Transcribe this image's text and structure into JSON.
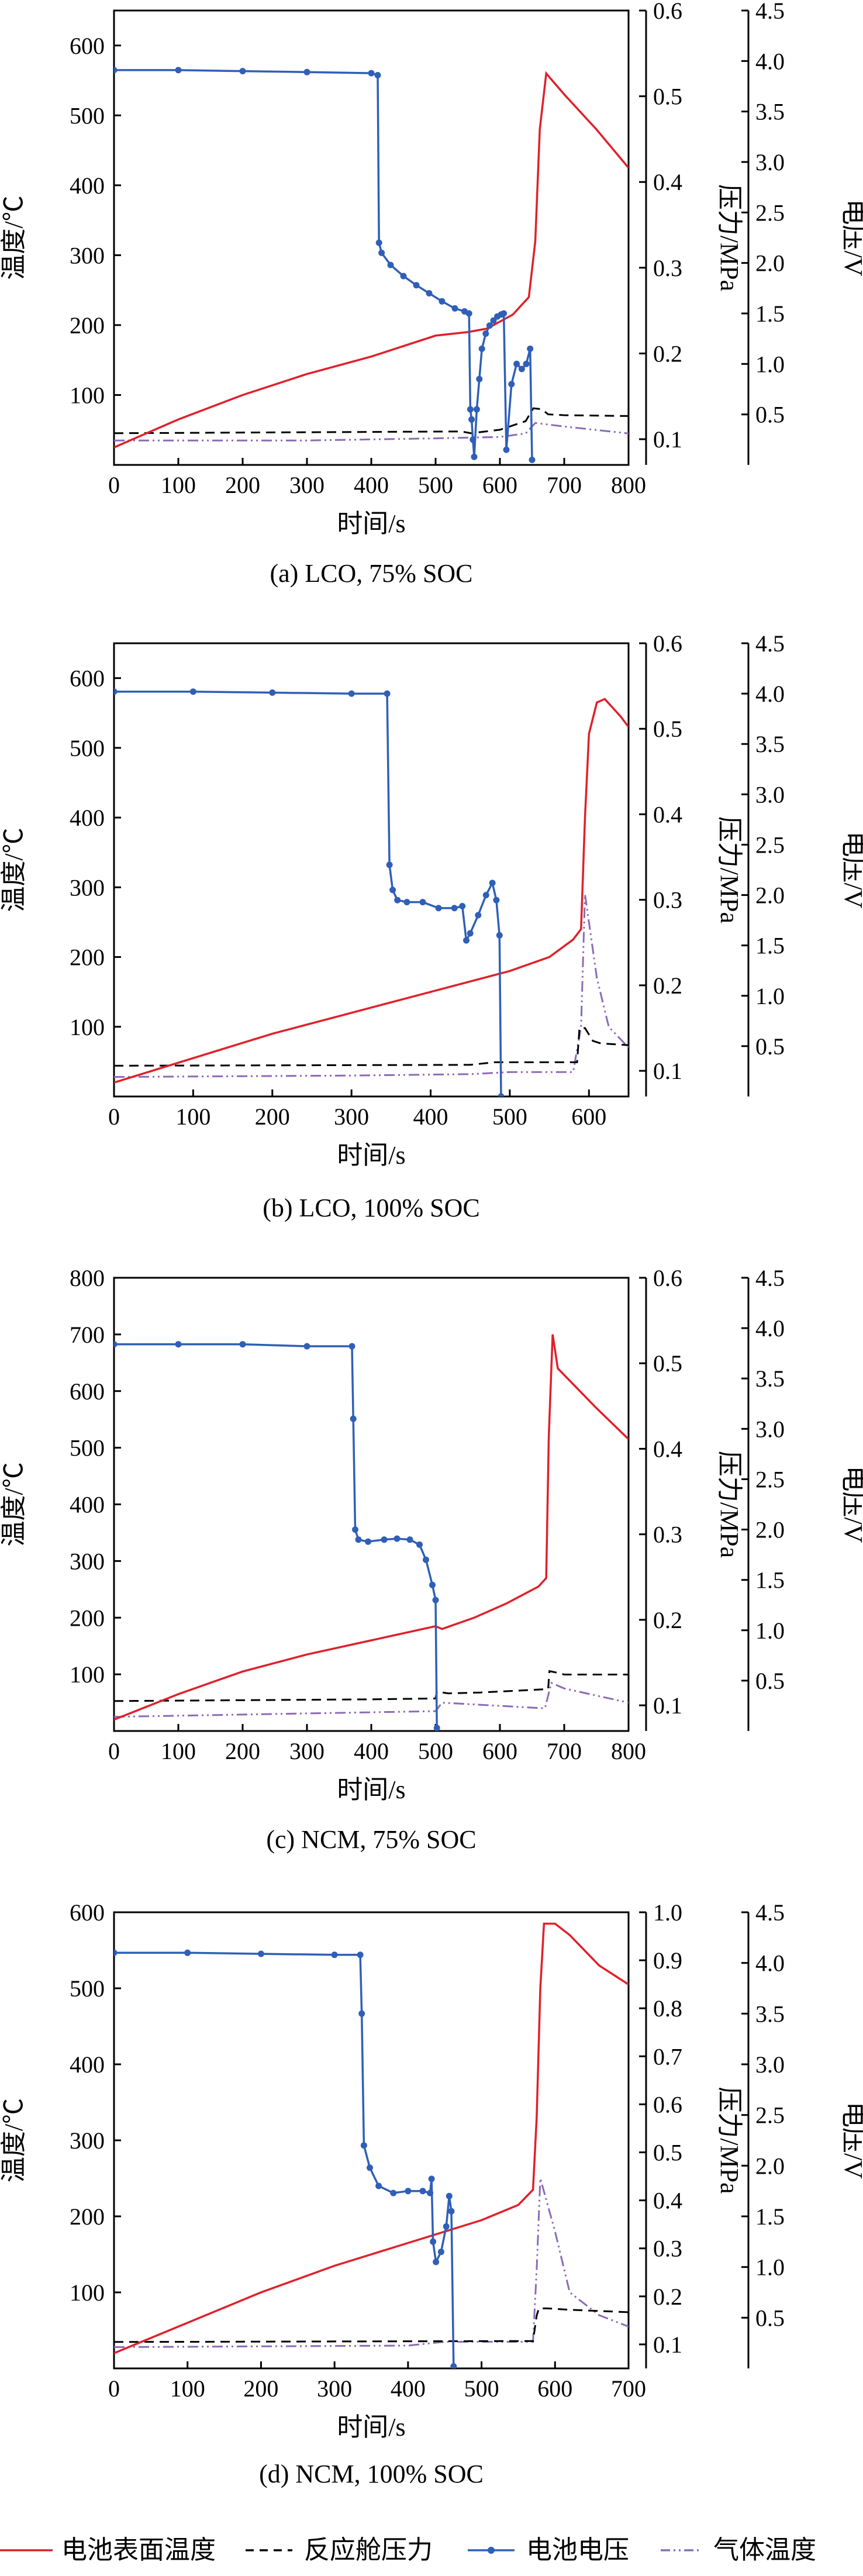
{
  "legend": [
    {
      "label": "电池表面温度",
      "color": "#e0202a",
      "style": "solid"
    },
    {
      "label": "反应舱压力",
      "color": "#000000",
      "style": "dashed"
    },
    {
      "label": "电池电压",
      "color": "#2f5fb8",
      "style": "marker"
    },
    {
      "label": "气体温度",
      "color": "#8b6bb8",
      "style": "dashdotdot"
    }
  ],
  "chart_data": [
    {
      "type": "line",
      "caption": "(a) LCO, 75% SOC",
      "xlabel": "时间/s",
      "y1label": "温度/℃",
      "y2label": "压力/MPa",
      "y3label": "电压/V",
      "xlim": [
        0,
        800
      ],
      "xticks": [
        0,
        100,
        200,
        300,
        400,
        500,
        600,
        700,
        800
      ],
      "y1lim": [
        0,
        650
      ],
      "y1ticks": [
        100,
        200,
        300,
        400,
        500,
        600
      ],
      "y2lim": [
        0.07,
        0.6
      ],
      "y2ticks": [
        0.1,
        0.2,
        0.3,
        0.4,
        0.5,
        0.6
      ],
      "y2dec": 1,
      "y3lim": [
        0.0,
        4.5
      ],
      "y3ticks": [
        0.5,
        1.0,
        1.5,
        2.0,
        2.5,
        3.0,
        3.5,
        4.0,
        4.5
      ],
      "series": {
        "surface_temp": [
          [
            0,
            25
          ],
          [
            100,
            65
          ],
          [
            200,
            100
          ],
          [
            300,
            130
          ],
          [
            400,
            155
          ],
          [
            500,
            185
          ],
          [
            550,
            190
          ],
          [
            580,
            195
          ],
          [
            620,
            215
          ],
          [
            645,
            240
          ],
          [
            655,
            320
          ],
          [
            662,
            480
          ],
          [
            672,
            560
          ],
          [
            700,
            530
          ],
          [
            750,
            480
          ],
          [
            800,
            425
          ]
        ],
        "pressure": [
          [
            0,
            0.107
          ],
          [
            540,
            0.109
          ],
          [
            555,
            0.107
          ],
          [
            600,
            0.111
          ],
          [
            640,
            0.121
          ],
          [
            652,
            0.136
          ],
          [
            665,
            0.135
          ],
          [
            675,
            0.129
          ],
          [
            700,
            0.128
          ],
          [
            800,
            0.127
          ]
        ],
        "gas_temp": [
          [
            0,
            35
          ],
          [
            300,
            35
          ],
          [
            500,
            38
          ],
          [
            600,
            40
          ],
          [
            640,
            45
          ],
          [
            655,
            60
          ],
          [
            700,
            55
          ],
          [
            800,
            45
          ]
        ],
        "voltage": [
          [
            0,
            3.91
          ],
          [
            100,
            3.91
          ],
          [
            200,
            3.9
          ],
          [
            300,
            3.89
          ],
          [
            400,
            3.88
          ],
          [
            410,
            3.86
          ],
          [
            412,
            2.2
          ],
          [
            416,
            2.1
          ],
          [
            430,
            1.98
          ],
          [
            450,
            1.87
          ],
          [
            470,
            1.78
          ],
          [
            490,
            1.7
          ],
          [
            510,
            1.62
          ],
          [
            530,
            1.55
          ],
          [
            545,
            1.52
          ],
          [
            552,
            1.5
          ],
          [
            554,
            0.55
          ],
          [
            556,
            0.45
          ],
          [
            558,
            0.25
          ],
          [
            560,
            0.08
          ],
          [
            564,
            0.55
          ],
          [
            568,
            0.85
          ],
          [
            572,
            1.15
          ],
          [
            578,
            1.3
          ],
          [
            584,
            1.38
          ],
          [
            590,
            1.43
          ],
          [
            596,
            1.47
          ],
          [
            602,
            1.49
          ],
          [
            606,
            1.5
          ],
          [
            610,
            0.15
          ],
          [
            618,
            0.8
          ],
          [
            626,
            1.0
          ],
          [
            634,
            0.95
          ],
          [
            641,
            1.0
          ],
          [
            647,
            1.15
          ],
          [
            650,
            0.05
          ]
        ]
      }
    },
    {
      "type": "line",
      "caption": "(b) LCO, 100% SOC",
      "xlabel": "时间/s",
      "y1label": "温度/℃",
      "y2label": "压力/MPa",
      "y3label": "电压/V",
      "xlim": [
        0,
        650
      ],
      "xticks": [
        0,
        100,
        200,
        300,
        400,
        500,
        600
      ],
      "y1lim": [
        0,
        650
      ],
      "y1ticks": [
        100,
        200,
        300,
        400,
        500,
        600
      ],
      "y2lim": [
        0.07,
        0.6
      ],
      "y2ticks": [
        0.1,
        0.2,
        0.3,
        0.4,
        0.5,
        0.6
      ],
      "y2dec": 1,
      "y3lim": [
        0.0,
        4.5
      ],
      "y3ticks": [
        0.5,
        1.0,
        1.5,
        2.0,
        2.5,
        3.0,
        3.5,
        4.0,
        4.5
      ],
      "series": {
        "surface_temp": [
          [
            0,
            20
          ],
          [
            100,
            55
          ],
          [
            200,
            90
          ],
          [
            300,
            120
          ],
          [
            400,
            150
          ],
          [
            450,
            165
          ],
          [
            500,
            180
          ],
          [
            550,
            200
          ],
          [
            580,
            225
          ],
          [
            590,
            240
          ],
          [
            595,
            400
          ],
          [
            600,
            520
          ],
          [
            610,
            565
          ],
          [
            620,
            570
          ],
          [
            640,
            545
          ],
          [
            650,
            530
          ]
        ],
        "pressure": [
          [
            0,
            0.106
          ],
          [
            450,
            0.107
          ],
          [
            480,
            0.11
          ],
          [
            585,
            0.11
          ],
          [
            588,
            0.15
          ],
          [
            595,
            0.15
          ],
          [
            605,
            0.135
          ],
          [
            615,
            0.132
          ],
          [
            650,
            0.13
          ]
        ],
        "gas_temp": [
          [
            0,
            28
          ],
          [
            300,
            30
          ],
          [
            450,
            32
          ],
          [
            500,
            35
          ],
          [
            580,
            35
          ],
          [
            590,
            100
          ],
          [
            595,
            290
          ],
          [
            610,
            170
          ],
          [
            625,
            100
          ],
          [
            650,
            70
          ]
        ],
        "voltage": [
          [
            0,
            4.02
          ],
          [
            100,
            4.02
          ],
          [
            200,
            4.01
          ],
          [
            300,
            4.0
          ],
          [
            345,
            4.0
          ],
          [
            348,
            2.3
          ],
          [
            352,
            2.05
          ],
          [
            358,
            1.95
          ],
          [
            370,
            1.93
          ],
          [
            390,
            1.93
          ],
          [
            410,
            1.87
          ],
          [
            430,
            1.87
          ],
          [
            440,
            1.89
          ],
          [
            445,
            1.55
          ],
          [
            450,
            1.62
          ],
          [
            460,
            1.8
          ],
          [
            470,
            2.0
          ],
          [
            478,
            2.12
          ],
          [
            483,
            1.95
          ],
          [
            487,
            1.6
          ],
          [
            489,
            0.0
          ]
        ]
      }
    },
    {
      "type": "line",
      "caption": "(c) NCM, 75% SOC",
      "xlabel": "时间/s",
      "y1label": "温度/℃",
      "y2label": "压力/MPa",
      "y3label": "电压/V",
      "xlim": [
        0,
        800
      ],
      "xticks": [
        0,
        100,
        200,
        300,
        400,
        500,
        600,
        700,
        800
      ],
      "y1lim": [
        0,
        800
      ],
      "y1ticks": [
        100,
        200,
        300,
        400,
        500,
        600,
        700,
        800
      ],
      "y2lim": [
        0.07,
        0.6
      ],
      "y2ticks": [
        0.1,
        0.2,
        0.3,
        0.4,
        0.5,
        0.6
      ],
      "y2dec": 1,
      "y3lim": [
        0.0,
        4.5
      ],
      "y3ticks": [
        0.5,
        1.0,
        1.5,
        2.0,
        2.5,
        3.0,
        3.5,
        4.0,
        4.5
      ],
      "series": {
        "surface_temp": [
          [
            0,
            20
          ],
          [
            100,
            65
          ],
          [
            200,
            105
          ],
          [
            300,
            135
          ],
          [
            400,
            160
          ],
          [
            500,
            185
          ],
          [
            510,
            180
          ],
          [
            560,
            200
          ],
          [
            610,
            225
          ],
          [
            660,
            255
          ],
          [
            672,
            270
          ],
          [
            676,
            520
          ],
          [
            682,
            700
          ],
          [
            690,
            640
          ],
          [
            750,
            570
          ],
          [
            800,
            515
          ]
        ],
        "pressure": [
          [
            0,
            0.105
          ],
          [
            400,
            0.107
          ],
          [
            500,
            0.108
          ],
          [
            502,
            0.116
          ],
          [
            520,
            0.114
          ],
          [
            570,
            0.115
          ],
          [
            650,
            0.118
          ],
          [
            675,
            0.119
          ],
          [
            677,
            0.14
          ],
          [
            690,
            0.138
          ],
          [
            700,
            0.136
          ],
          [
            800,
            0.136
          ]
        ],
        "gas_temp": [
          [
            0,
            25
          ],
          [
            500,
            35
          ],
          [
            510,
            50
          ],
          [
            670,
            40
          ],
          [
            680,
            85
          ],
          [
            700,
            75
          ],
          [
            800,
            50
          ]
        ],
        "voltage": [
          [
            0,
            3.84
          ],
          [
            100,
            3.84
          ],
          [
            200,
            3.84
          ],
          [
            300,
            3.82
          ],
          [
            370,
            3.82
          ],
          [
            372,
            3.1
          ],
          [
            375,
            2.0
          ],
          [
            380,
            1.9
          ],
          [
            395,
            1.88
          ],
          [
            420,
            1.9
          ],
          [
            440,
            1.91
          ],
          [
            460,
            1.9
          ],
          [
            475,
            1.85
          ],
          [
            485,
            1.7
          ],
          [
            495,
            1.45
          ],
          [
            500,
            1.3
          ],
          [
            502,
            0.03
          ]
        ]
      }
    },
    {
      "type": "line",
      "caption": "(d) NCM, 100% SOC",
      "xlabel": "时间/s",
      "y1label": "温度/℃",
      "y2label": "压力/MPa",
      "y3label": "电压/V",
      "xlim": [
        0,
        700
      ],
      "xticks": [
        0,
        100,
        200,
        300,
        400,
        500,
        600,
        700
      ],
      "y1lim": [
        0,
        600
      ],
      "y1ticks": [
        100,
        200,
        300,
        400,
        500,
        600
      ],
      "y2lim": [
        0.05,
        1.0
      ],
      "y2ticks": [
        0.1,
        0.2,
        0.3,
        0.4,
        0.5,
        0.6,
        0.7,
        0.8,
        0.9,
        1.0
      ],
      "y2dec": 1,
      "y3lim": [
        0.0,
        4.5
      ],
      "y3ticks": [
        0.5,
        1.0,
        1.5,
        2.0,
        2.5,
        3.0,
        3.5,
        4.0,
        4.5
      ],
      "series": {
        "surface_temp": [
          [
            0,
            20
          ],
          [
            100,
            60
          ],
          [
            200,
            100
          ],
          [
            300,
            135
          ],
          [
            400,
            165
          ],
          [
            500,
            195
          ],
          [
            550,
            215
          ],
          [
            570,
            235
          ],
          [
            575,
            330
          ],
          [
            580,
            500
          ],
          [
            585,
            585
          ],
          [
            600,
            585
          ],
          [
            620,
            570
          ],
          [
            660,
            530
          ],
          [
            700,
            505
          ]
        ],
        "pressure": [
          [
            0,
            0.105
          ],
          [
            560,
            0.107
          ],
          [
            570,
            0.107
          ],
          [
            575,
            0.16
          ],
          [
            578,
            0.175
          ],
          [
            590,
            0.175
          ],
          [
            620,
            0.172
          ],
          [
            700,
            0.167
          ]
        ],
        "gas_temp": [
          [
            0,
            28
          ],
          [
            400,
            30
          ],
          [
            450,
            35
          ],
          [
            570,
            35
          ],
          [
            575,
            130
          ],
          [
            580,
            250
          ],
          [
            600,
            180
          ],
          [
            620,
            100
          ],
          [
            660,
            70
          ],
          [
            700,
            55
          ]
        ],
        "voltage": [
          [
            0,
            4.1
          ],
          [
            100,
            4.1
          ],
          [
            200,
            4.09
          ],
          [
            300,
            4.08
          ],
          [
            335,
            4.08
          ],
          [
            337,
            3.5
          ],
          [
            340,
            2.2
          ],
          [
            348,
            1.98
          ],
          [
            360,
            1.8
          ],
          [
            380,
            1.73
          ],
          [
            400,
            1.75
          ],
          [
            420,
            1.75
          ],
          [
            430,
            1.73
          ],
          [
            432,
            1.87
          ],
          [
            434,
            1.25
          ],
          [
            438,
            1.05
          ],
          [
            445,
            1.15
          ],
          [
            452,
            1.4
          ],
          [
            456,
            1.7
          ],
          [
            459,
            1.55
          ],
          [
            462,
            0.02
          ]
        ]
      }
    }
  ]
}
